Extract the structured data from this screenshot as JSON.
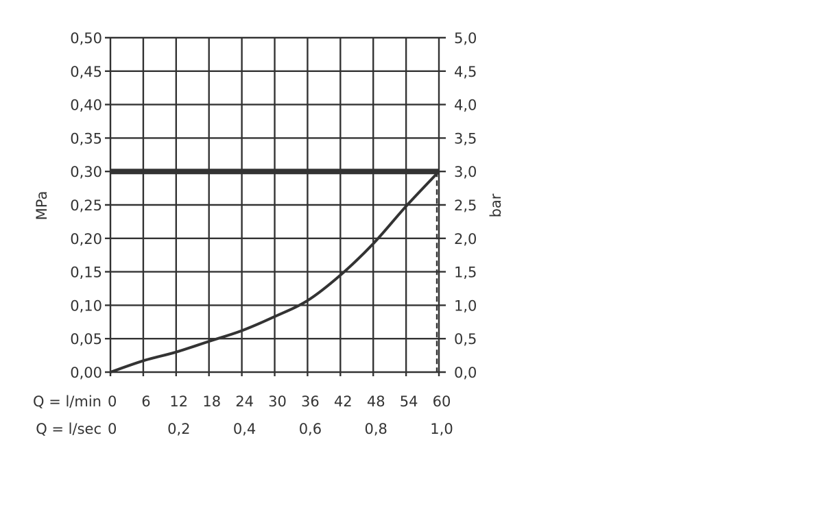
{
  "chart_data": {
    "type": "line",
    "title": "",
    "ylabel_left": "MPa",
    "ylabel_right": "bar",
    "xlabel_rows": [
      {
        "label": "Q = l/min",
        "ticks": [
          "0",
          "6",
          "12",
          "18",
          "24",
          "30",
          "36",
          "42",
          "48",
          "54",
          "60"
        ],
        "values": [
          0,
          6,
          12,
          18,
          24,
          30,
          36,
          42,
          48,
          54,
          60
        ]
      },
      {
        "label": "Q = l/sec",
        "ticks": [
          "0",
          "0,2",
          "0,4",
          "0,6",
          "0,8",
          "1,0"
        ],
        "values": [
          0,
          12,
          24,
          36,
          48,
          60
        ]
      }
    ],
    "xlim": [
      0,
      60
    ],
    "ylim": [
      0,
      0.5
    ],
    "yticks_left": [
      "0,00",
      "0,05",
      "0,10",
      "0,15",
      "0,20",
      "0,25",
      "0,30",
      "0,35",
      "0,40",
      "0,45",
      "0,50"
    ],
    "yticks_right": [
      "0,0",
      "0,5",
      "1,0",
      "1,5",
      "2,0",
      "2,5",
      "3,0",
      "3,5",
      "4,0",
      "4,5",
      "5,0"
    ],
    "ytick_values": [
      0,
      0.05,
      0.1,
      0.15,
      0.2,
      0.25,
      0.3,
      0.35,
      0.4,
      0.45,
      0.5
    ],
    "grid": true,
    "series": [
      {
        "style": "curve",
        "x": [
          0,
          6,
          12,
          18,
          24,
          30,
          36,
          42,
          48,
          54,
          60
        ],
        "y": [
          0,
          0.017,
          0.03,
          0.046,
          0.062,
          0.083,
          0.107,
          0.145,
          0.192,
          0.248,
          0.3
        ]
      }
    ],
    "reference_lines": [
      {
        "type": "horizontal",
        "style": "thick",
        "y": 0.3
      },
      {
        "type": "vertical",
        "style": "dashed",
        "x": 60,
        "y_from": 0,
        "y_to": 0.3
      }
    ],
    "colors": {
      "ink": "#333333"
    }
  }
}
